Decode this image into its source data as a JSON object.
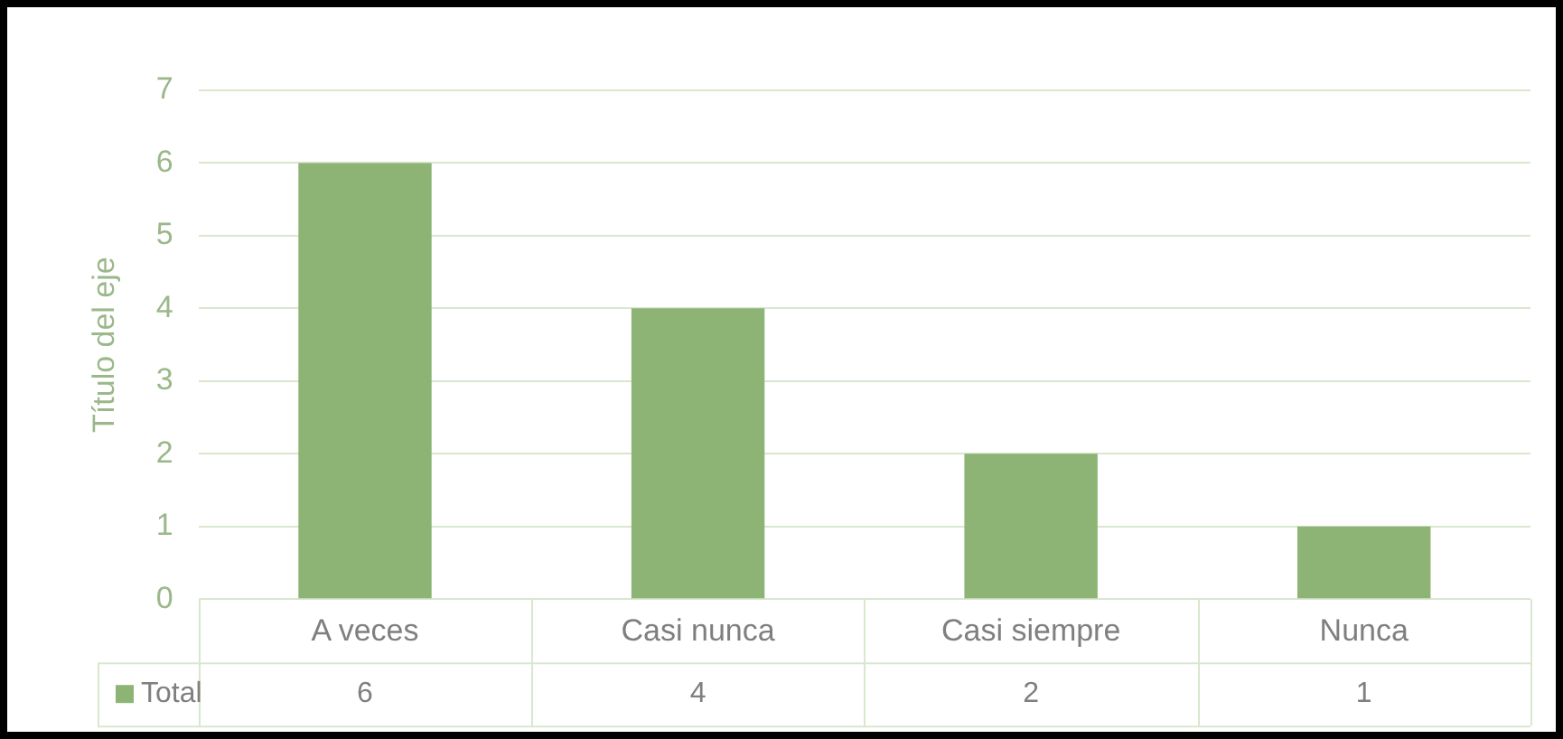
{
  "chart_data": {
    "type": "bar",
    "ylabel": "Título del eje",
    "categories": [
      "A veces",
      "Casi nunca",
      "Casi siempre",
      "Nunca"
    ],
    "series": [
      {
        "name": "Total",
        "color": "#8db474",
        "values": [
          6,
          4,
          2,
          1
        ]
      }
    ],
    "ylim": [
      0,
      7
    ],
    "yticks": [
      0,
      1,
      2,
      3,
      4,
      5,
      6,
      7
    ],
    "grid": "y",
    "data_labels": true
  }
}
